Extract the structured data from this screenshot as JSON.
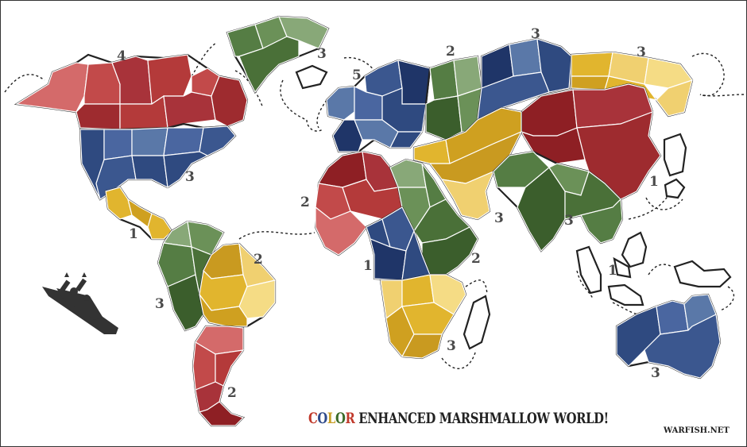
{
  "title": {
    "letters": [
      {
        "char": "C",
        "color": "#c0392b"
      },
      {
        "char": "O",
        "color": "#2e4a8a"
      },
      {
        "char": "L",
        "color": "#c9a12a"
      },
      {
        "char": "O",
        "color": "#3b6b2a"
      },
      {
        "char": "R",
        "color": "#c0392b"
      }
    ],
    "rest": "ENHANCED MARSHMALLOW WORLD!"
  },
  "credit": "WARFISH.NET",
  "colors": {
    "red": "#b0353a",
    "red_light": "#d46a6a",
    "blue": "#2f4a80",
    "blue_light": "#5a78a8",
    "yellow": "#e1b52e",
    "yellow_light": "#f0d070",
    "green": "#557d44",
    "green_light": "#88a878",
    "ship": "#333333"
  },
  "bonuses": [
    {
      "id": "north-america",
      "value": "4"
    },
    {
      "id": "central-usa",
      "value": "3"
    },
    {
      "id": "central-america",
      "value": "1"
    },
    {
      "id": "greenland",
      "value": "3"
    },
    {
      "id": "europe",
      "value": "5"
    },
    {
      "id": "north-russia",
      "value": "2"
    },
    {
      "id": "siberia",
      "value": "3"
    },
    {
      "id": "far-east",
      "value": "3"
    },
    {
      "id": "japan",
      "value": "1"
    },
    {
      "id": "north-africa",
      "value": "2"
    },
    {
      "id": "middle-east",
      "value": "3"
    },
    {
      "id": "india",
      "value": "3"
    },
    {
      "id": "central-africa",
      "value": "1"
    },
    {
      "id": "east-africa",
      "value": "2"
    },
    {
      "id": "south-africa",
      "value": "3"
    },
    {
      "id": "indonesia",
      "value": "1"
    },
    {
      "id": "australia",
      "value": "3"
    },
    {
      "id": "brazil",
      "value": "2"
    },
    {
      "id": "andes",
      "value": "3"
    },
    {
      "id": "argentina",
      "value": "2"
    }
  ],
  "icons": {
    "ship": "battleship-icon"
  }
}
